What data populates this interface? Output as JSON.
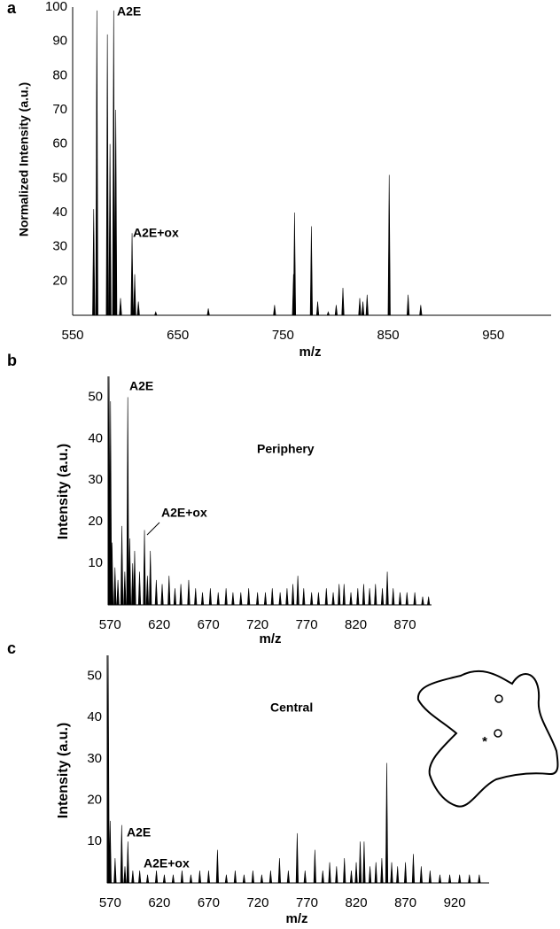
{
  "chart_data": [
    {
      "type": "spectrum",
      "panel": "a",
      "y_label": "Normalized Intensity (a.u.)",
      "x_label": "m/z",
      "annotations": [
        "A2E",
        "A2E+ox"
      ],
      "color": "#000000",
      "grid": false,
      "xlim": [
        550,
        1005
      ],
      "xticks": [
        550,
        650,
        750,
        850,
        950
      ],
      "ylim": [
        10,
        100
      ],
      "yticks": [
        20,
        30,
        40,
        50,
        60,
        70,
        80,
        90,
        100
      ],
      "x": [
        570,
        573,
        583,
        585.5,
        589,
        591,
        595.5,
        606.5,
        609,
        612.5,
        629,
        679,
        742,
        760,
        761,
        777,
        783,
        793,
        800.6,
        807,
        823,
        826,
        830,
        851,
        869,
        881
      ],
      "values": [
        41,
        99,
        92,
        60,
        99,
        70,
        15,
        34,
        22,
        14,
        11,
        12,
        13,
        22,
        40,
        36,
        14,
        11,
        13,
        18,
        15,
        14,
        16,
        51,
        16,
        13
      ]
    },
    {
      "type": "spectrum",
      "panel": "b",
      "y_label": "Intensity (a.u.)",
      "x_label": "m/z",
      "annotations": [
        "A2E",
        "A2E+ox",
        "Periphery"
      ],
      "color": "#000000",
      "grid": false,
      "xlim": [
        568,
        897
      ],
      "xticks": [
        570,
        620,
        670,
        720,
        770,
        820,
        870
      ],
      "ylim": [
        0,
        55
      ],
      "yticks": [
        10,
        20,
        30,
        40,
        50
      ],
      "x": [
        569,
        570.5,
        572,
        575,
        578,
        582,
        585,
        588,
        590,
        593,
        595,
        600,
        605,
        608,
        611,
        617,
        623,
        630,
        636,
        642,
        650,
        657,
        664,
        672,
        680,
        688,
        695,
        703,
        711,
        720,
        728,
        735,
        743,
        750,
        756,
        761,
        767,
        775,
        782,
        790,
        797,
        803,
        808,
        815,
        822,
        828,
        834,
        840,
        847,
        852,
        858,
        865,
        872,
        880,
        888,
        894
      ],
      "values": [
        55,
        49,
        15,
        9,
        6,
        19,
        8,
        50,
        16,
        10,
        13,
        8,
        18,
        7,
        13,
        6,
        5,
        7,
        4,
        5,
        6,
        4,
        3,
        4,
        3,
        4,
        3,
        3,
        4,
        3,
        3,
        4,
        3,
        4,
        5,
        7,
        4,
        3,
        3,
        4,
        3,
        5,
        5,
        3,
        4,
        5,
        4,
        5,
        4,
        8,
        4,
        3,
        3,
        3,
        2,
        2
      ]
    },
    {
      "type": "spectrum",
      "panel": "c",
      "y_label": "Intensity (a.u.)",
      "x_label": "m/z",
      "annotations": [
        "A2E",
        "A2E+ox",
        "Central"
      ],
      "color": "#000000",
      "grid": false,
      "xlim": [
        567,
        955
      ],
      "xticks": [
        570,
        620,
        670,
        720,
        770,
        820,
        870,
        920
      ],
      "ylim": [
        0,
        55
      ],
      "yticks": [
        10,
        20,
        30,
        40,
        50
      ],
      "x": [
        568,
        570,
        575,
        581.7,
        585,
        588,
        593,
        600,
        608,
        617,
        625,
        634,
        643,
        652,
        661,
        670,
        679,
        688,
        697,
        706,
        715,
        724,
        733,
        742,
        751,
        760,
        768,
        778,
        786,
        793,
        800,
        808,
        815,
        820,
        824,
        828,
        834,
        840,
        846,
        851,
        856,
        862,
        870,
        878,
        886,
        895,
        905,
        915,
        925,
        935,
        945
      ],
      "values": [
        55,
        15,
        6,
        14,
        4,
        10,
        3,
        3,
        2,
        3,
        2,
        2,
        3,
        2,
        3,
        3,
        8,
        2,
        3,
        2,
        3,
        2,
        3,
        6,
        3,
        12,
        3,
        8,
        3,
        5,
        4,
        6,
        3,
        5,
        10,
        10,
        4,
        5,
        6,
        29,
        5,
        4,
        5,
        7,
        4,
        3,
        2,
        2,
        2,
        2,
        2
      ]
    }
  ]
}
